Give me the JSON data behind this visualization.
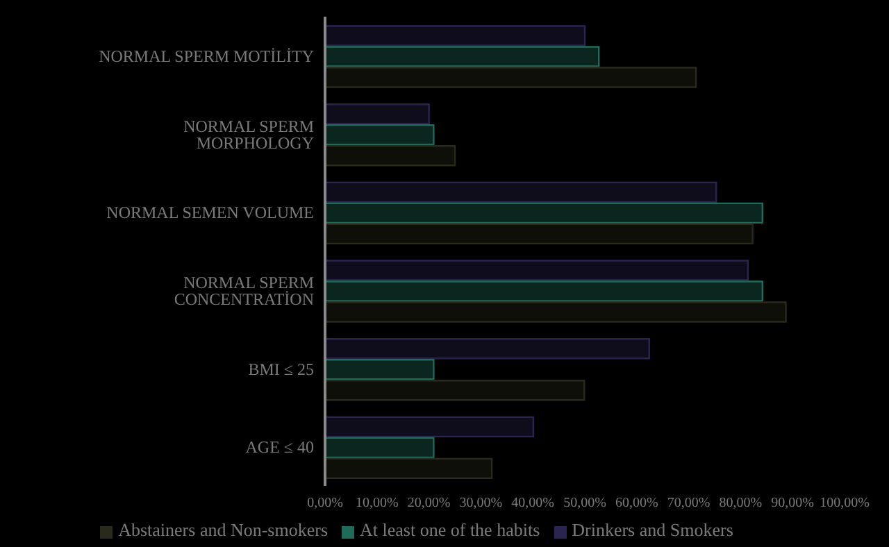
{
  "chart_data": {
    "type": "bar",
    "orientation": "horizontal",
    "categories": [
      "NORMAL SPERM MOTİLİTY",
      "NORMAL SPERM MORPHOLOGY",
      "NORMAL SEMEN VOLUME",
      "NORMAL SPERM CONCENTRATİON",
      "BMI ≤ 25",
      "AGE ≤ 40"
    ],
    "series": [
      {
        "name": "Drinkers and Smokers",
        "color": "#2a2450",
        "values": [
          50,
          20,
          75.3,
          81.4,
          62.4,
          40.1
        ]
      },
      {
        "name": "At least one of the habits",
        "color": "#1f6b5a",
        "values": [
          52.7,
          20.9,
          84.2,
          84.2,
          20.9,
          20.9
        ]
      },
      {
        "name": "Abstainers and Non-smokers",
        "color": "#2a2a1c",
        "values": [
          71.4,
          25,
          82.3,
          88.7,
          49.9,
          32.1
        ]
      }
    ],
    "xlim": [
      0,
      100
    ],
    "xticks": [
      {
        "value": 0,
        "label": "0,00%"
      },
      {
        "value": 10,
        "label": "10,00%"
      },
      {
        "value": 20,
        "label": "20,00%"
      },
      {
        "value": 30,
        "label": "30,00%"
      },
      {
        "value": 40,
        "label": "40,00%"
      },
      {
        "value": 50,
        "label": "50,00%"
      },
      {
        "value": 60,
        "label": "60,00%"
      },
      {
        "value": 70,
        "label": "70,00%"
      },
      {
        "value": 80,
        "label": "80,00%"
      },
      {
        "value": 90,
        "label": "90,00%"
      },
      {
        "value": 100,
        "label": "100,00%"
      }
    ],
    "grid": false,
    "legend": "bottom"
  }
}
